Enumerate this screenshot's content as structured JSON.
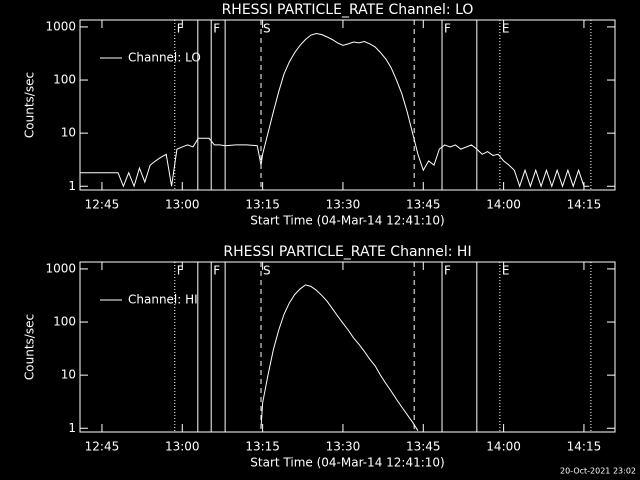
{
  "chart_data": [
    {
      "type": "line",
      "title": "RHESSI PARTICLE_RATE Channel: LO",
      "xlabel": "Start Time (04-Mar-14 12:41:10)",
      "ylabel": "Counts/sec",
      "log_scale": true,
      "legend": "upper left",
      "xlim": [
        760.9,
        860.8
      ],
      "xticks": [
        {
          "value": 765,
          "label": "12:45"
        },
        {
          "value": 780,
          "label": "13:00"
        },
        {
          "value": 795,
          "label": "13:15"
        },
        {
          "value": 810,
          "label": "13:30"
        },
        {
          "value": 825,
          "label": "13:45"
        },
        {
          "value": 840,
          "label": "14:00"
        },
        {
          "value": 855,
          "label": "14:15"
        }
      ],
      "ylim": [
        0.85,
        1350
      ],
      "yticks": [
        1,
        10,
        100,
        1000
      ],
      "markers": [
        {
          "x": 778.6,
          "style": "dotted",
          "label": "F"
        },
        {
          "x": 782.9,
          "style": "solid"
        },
        {
          "x": 785.4,
          "style": "solid",
          "label": "F"
        },
        {
          "x": 788.0,
          "style": "solid"
        },
        {
          "x": 794.7,
          "style": "dashed",
          "label": "S"
        },
        {
          "x": 823.3,
          "style": "dashed"
        },
        {
          "x": 828.5,
          "style": "solid",
          "label": "F"
        },
        {
          "x": 835.0,
          "style": "solid"
        },
        {
          "x": 839.3,
          "style": "dotted",
          "label": "E"
        },
        {
          "x": 856.3,
          "style": "dotted"
        }
      ],
      "x": [
        761,
        768,
        769,
        770,
        771,
        772,
        773,
        774,
        775,
        776,
        777,
        778,
        779,
        780,
        781,
        782,
        783,
        784,
        785,
        786,
        787,
        788,
        790,
        792,
        794,
        794.7,
        795,
        796,
        797,
        798,
        799,
        800,
        801,
        802,
        803,
        804,
        805,
        806,
        807,
        808,
        809,
        810,
        811,
        812,
        813,
        814,
        815,
        816,
        817,
        818,
        819,
        820,
        821,
        822,
        823,
        824,
        825,
        826,
        827,
        828,
        829,
        830,
        831,
        832,
        834,
        835,
        836,
        837,
        838,
        839,
        840,
        841,
        842,
        843,
        844,
        845,
        846,
        847,
        848,
        849,
        850,
        851,
        852,
        853,
        854,
        855,
        856
      ],
      "series": [
        {
          "name": "Channel: LO",
          "color": "#ffffff",
          "values": [
            1.8,
            1.8,
            1.0,
            1.8,
            1.0,
            2.2,
            1.2,
            2.5,
            3,
            3.5,
            4,
            1,
            5,
            5.5,
            6,
            5.5,
            8,
            8,
            8,
            6,
            6,
            5.8,
            6,
            6,
            5.8,
            2.5,
            4,
            10,
            25,
            60,
            130,
            220,
            330,
            450,
            580,
            700,
            750,
            720,
            650,
            580,
            500,
            450,
            480,
            520,
            500,
            530,
            480,
            420,
            330,
            250,
            170,
            100,
            55,
            25,
            10,
            4,
            2,
            3,
            2.5,
            5,
            6,
            5.5,
            6,
            5,
            6,
            5,
            4,
            4.5,
            3.8,
            4,
            3,
            2.5,
            2,
            1,
            2,
            1,
            2,
            1,
            2,
            1,
            2,
            1,
            2,
            1,
            2,
            1,
            1
          ]
        }
      ]
    },
    {
      "type": "line",
      "title": "RHESSI PARTICLE_RATE Channel: HI",
      "xlabel": "Start Time (04-Mar-14 12:41:10)",
      "ylabel": "Counts/sec",
      "log_scale": true,
      "legend": "upper left",
      "xlim": [
        760.9,
        860.8
      ],
      "xticks": [
        {
          "value": 765,
          "label": "12:45"
        },
        {
          "value": 780,
          "label": "13:00"
        },
        {
          "value": 795,
          "label": "13:15"
        },
        {
          "value": 810,
          "label": "13:30"
        },
        {
          "value": 825,
          "label": "13:45"
        },
        {
          "value": 840,
          "label": "14:00"
        },
        {
          "value": 855,
          "label": "14:15"
        }
      ],
      "ylim": [
        0.85,
        1350
      ],
      "yticks": [
        1,
        10,
        100,
        1000
      ],
      "markers": [
        {
          "x": 778.6,
          "style": "dotted",
          "label": "F"
        },
        {
          "x": 782.9,
          "style": "solid"
        },
        {
          "x": 785.4,
          "style": "solid",
          "label": "F"
        },
        {
          "x": 788.0,
          "style": "solid"
        },
        {
          "x": 794.7,
          "style": "dashed",
          "label": "S"
        },
        {
          "x": 823.3,
          "style": "dashed"
        },
        {
          "x": 828.5,
          "style": "solid",
          "label": "F"
        },
        {
          "x": 835.0,
          "style": "solid"
        },
        {
          "x": 839.3,
          "style": "dotted",
          "label": "E"
        },
        {
          "x": 856.3,
          "style": "dotted"
        }
      ],
      "x": [
        794.7,
        795,
        796,
        797,
        798,
        799,
        800,
        801,
        802,
        803,
        804,
        805,
        806,
        807,
        808,
        809,
        810,
        811,
        812,
        813,
        814,
        815,
        816,
        817,
        818,
        819,
        820,
        821,
        822,
        823,
        824
      ],
      "series": [
        {
          "name": "Channel: HI",
          "color": "#ffffff",
          "values": [
            1,
            3,
            10,
            30,
            70,
            140,
            230,
            330,
            420,
            500,
            470,
            400,
            320,
            250,
            180,
            130,
            95,
            70,
            50,
            38,
            28,
            20,
            15,
            10,
            7,
            5,
            3.5,
            2.5,
            1.8,
            1.3,
            0.9
          ]
        }
      ]
    }
  ],
  "footer": "20-Oct-2021 23:02"
}
